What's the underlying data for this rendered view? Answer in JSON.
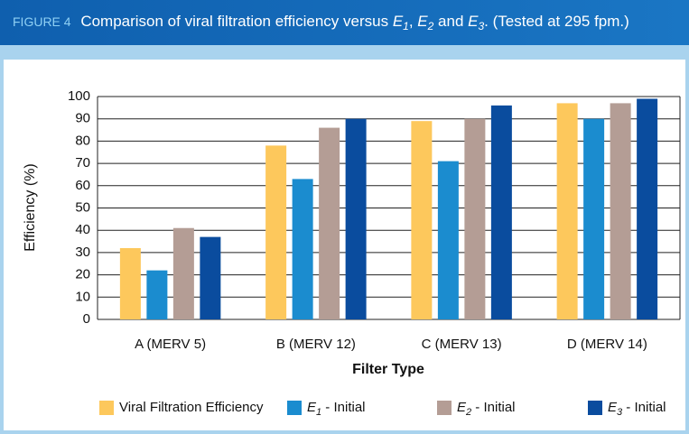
{
  "chart_data": {
    "type": "bar",
    "figure_label": "FIGURE 4",
    "title": [
      "Comparison of viral filtration efficiency versus ",
      "E",
      "1",
      ", ",
      "E",
      "2",
      " and ",
      "E",
      "3",
      ". (Tested at 295 fpm.)"
    ],
    "x_label": "Filter Type",
    "y_label": "Efficiency (%)",
    "categories": [
      "A (MERV 5)",
      "B (MERV 12)",
      "C (MERV 13)",
      "D (MERV 14)"
    ],
    "series": [
      {
        "name": "Viral Filtration Efficiency",
        "color": "#fdc85c",
        "values": [
          32,
          78,
          89,
          97
        ]
      },
      {
        "name": {
          "symbol": "E",
          "subscript": "1",
          "text": " - Initial"
        },
        "color": "#1b8ccf",
        "values": [
          22,
          63,
          71,
          90
        ]
      },
      {
        "name": {
          "symbol": "E",
          "subscript": "2",
          "text": " - Initial"
        },
        "color": "#b49d95",
        "values": [
          41,
          86,
          90,
          97
        ]
      },
      {
        "name": {
          "symbol": "E",
          "subscript": "3",
          "text": " - Initial"
        },
        "color": "#0a4c9e",
        "values": [
          37,
          90,
          96,
          99
        ]
      }
    ],
    "ylim": [
      0,
      100
    ],
    "yticks": [
      0,
      10,
      20,
      30,
      40,
      50,
      60,
      70,
      80,
      90,
      100
    ],
    "grid": true,
    "legend": "bottom"
  }
}
